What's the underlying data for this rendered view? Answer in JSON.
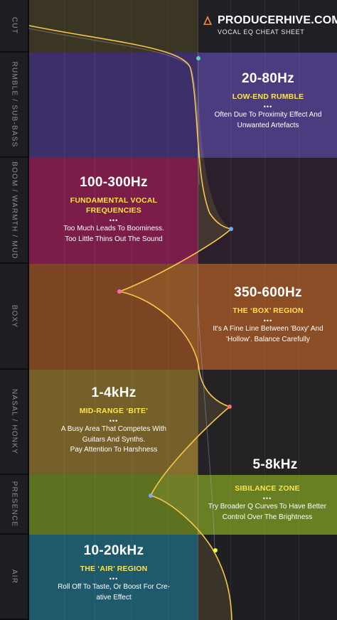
{
  "header": {
    "brand_name": "PRODUCERHIVE.COM",
    "subtitle": "VOCAL EQ CHEAT SHEET",
    "logo_icon": "hive-logo-icon"
  },
  "colors": {
    "rumble": "#4a3a7d",
    "boom": "#7a1f4a",
    "boxy": "#8a4d26",
    "nasal": "#7f6328",
    "presence": "#61781f",
    "air": "#205d70",
    "curve": "#f5c84a"
  },
  "sidebar": {
    "labels": [
      "CUT",
      "RUMBLE / SUB-BASS",
      "BOOM / WARMTH / MUD",
      "BOXY",
      "NASAL / HONKY",
      "PRESENCE",
      "AIR"
    ]
  },
  "zones": {
    "rumble": {
      "freq": "20-80Hz",
      "name": "LOW-END RUMBLE",
      "dots": "•••",
      "desc": [
        "Often Due To Proximity Effect And",
        "Unwanted Artefacts"
      ]
    },
    "boom": {
      "freq": "100-300Hz",
      "name": [
        "FUNDAMENTAL VOCAL",
        "FREQUENCIES"
      ],
      "dots": "•••",
      "desc": [
        "Too Much Leads To Boominess.",
        "Too Little Thins Out The Sound"
      ]
    },
    "boxy": {
      "freq": "350-600Hz",
      "name": "THE ‘BOX’ REGION",
      "dots": "•••",
      "desc": [
        "It's A Fine Line Between 'Boxy' And",
        "'Hollow'. Balance Carefully"
      ]
    },
    "nasal": {
      "freq": "1-4kHz",
      "name": "MID-RANGE ‘BITE’",
      "dots": "•••",
      "desc": [
        "A Busy Area That Competes With",
        "Guitars And Synths.",
        "Pay Attention To Harshness"
      ]
    },
    "presence": {
      "freq": "5-8kHz",
      "name": "SIBILANCE ZONE",
      "dots": "•••",
      "desc": [
        "Try Broader Q Curves To Have Better",
        "Control Over The Brightness"
      ]
    },
    "air": {
      "freq": "10-20kHz",
      "name": "THE ‘AIR’ REGION",
      "dots": "•••",
      "desc": [
        "Roll Off To Taste, Or Boost For Cre-",
        "ative Effect"
      ]
    }
  }
}
